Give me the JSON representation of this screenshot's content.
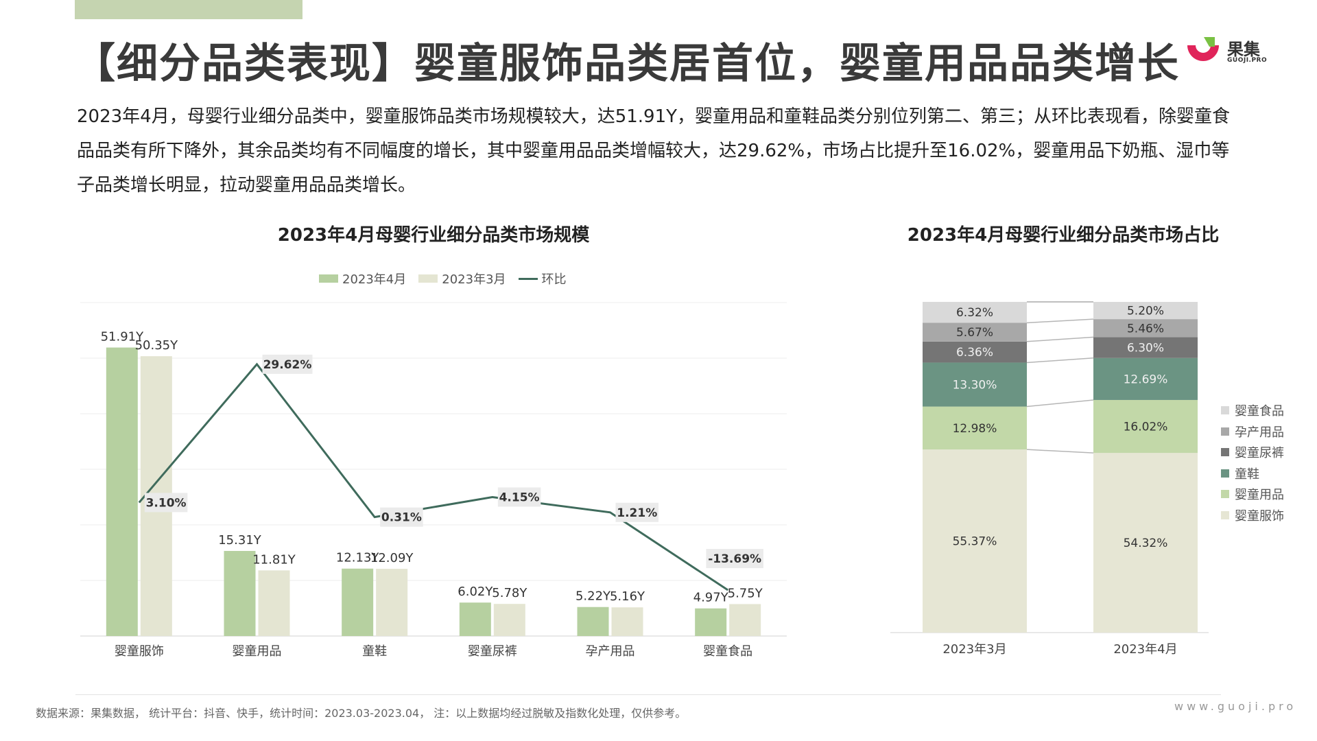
{
  "header": {
    "title": "【细分品类表现】婴童服饰品类居首位，婴童用品品类增长",
    "logo_brand": "果集",
    "logo_sub": "GUOJI.PRO"
  },
  "intro": "2023年4月，母婴行业细分品类中，婴童服饰品类市场规模较大，达51.91Y，婴童用品和童鞋品类分别位列第二、第三；从环比表现看，除婴童食品品类有所下降外，其余品类均有不同幅度的增长，其中婴童用品品类增幅较大，达29.62%，市场占比提升至16.02%，婴童用品下奶瓶、湿巾等子品类增长明显，拉动婴童用品品类增长。",
  "chart_data": [
    {
      "type": "bar",
      "title": "2023年4月母婴行业细分品类市场规模",
      "categories": [
        "婴童服饰",
        "婴童用品",
        "童鞋",
        "婴童尿裤",
        "孕产用品",
        "婴童食品"
      ],
      "series": [
        {
          "name": "2023年4月",
          "type": "bar",
          "values": [
            51.91,
            15.31,
            12.13,
            6.02,
            5.22,
            4.97
          ],
          "labels": [
            "51.91Y",
            "15.31Y",
            "12.13Y",
            "6.02Y",
            "5.22Y",
            "4.97Y"
          ],
          "color": "#b6d0a0"
        },
        {
          "name": "2023年3月",
          "type": "bar",
          "values": [
            50.35,
            11.81,
            12.09,
            5.78,
            5.16,
            5.75
          ],
          "labels": [
            "50.35Y",
            "11.81Y",
            "12.09Y",
            "5.78Y",
            "5.16Y",
            "5.75Y"
          ],
          "color": "#e4e5d2"
        },
        {
          "name": "环比",
          "type": "line",
          "values": [
            3.1,
            29.62,
            0.31,
            4.15,
            1.21,
            -13.69
          ],
          "labels": [
            "3.10%",
            "29.62%",
            "0.31%",
            "4.15%",
            "1.21%",
            "-13.69%"
          ],
          "color": "#3f6b5c"
        }
      ],
      "ylim": [
        0,
        60
      ],
      "line_ylim": [
        -15,
        35
      ],
      "grid": true,
      "legend_position": "top"
    },
    {
      "type": "bar",
      "stacked": true,
      "percent": true,
      "title": "2023年4月母婴行业细分品类市场占比",
      "categories": [
        "2023年3月",
        "2023年4月"
      ],
      "series": [
        {
          "name": "婴童服饰",
          "values": [
            55.37,
            54.32
          ],
          "labels": [
            "55.37%",
            "54.32%"
          ],
          "color": "#e6e6d4"
        },
        {
          "name": "婴童用品",
          "values": [
            12.98,
            16.02
          ],
          "labels": [
            "12.98%",
            "16.02%"
          ],
          "color": "#c2d8a8"
        },
        {
          "name": "童鞋",
          "values": [
            13.3,
            12.69
          ],
          "labels": [
            "13.30%",
            "12.69%"
          ],
          "color": "#6b9483"
        },
        {
          "name": "婴童尿裤",
          "values": [
            6.36,
            6.3
          ],
          "labels": [
            "6.36%",
            "6.30%"
          ],
          "color": "#757575"
        },
        {
          "name": "孕产用品",
          "values": [
            5.67,
            5.46
          ],
          "labels": [
            "5.67%",
            "5.46%"
          ],
          "color": "#a8a8a8"
        },
        {
          "name": "婴童食品",
          "values": [
            6.32,
            5.2
          ],
          "labels": [
            "6.32%",
            "5.20%"
          ],
          "color": "#d9d9d9"
        }
      ],
      "ylim": [
        0,
        100
      ],
      "legend_position": "right"
    }
  ],
  "footer": {
    "source": "数据来源：果集数据， 统计平台：抖音、快手，统计时间：2023.03-2023.04， 注：以上数据均经过脱敏及指数化处理，仅供参考。",
    "site": "www.guoji.pro"
  }
}
